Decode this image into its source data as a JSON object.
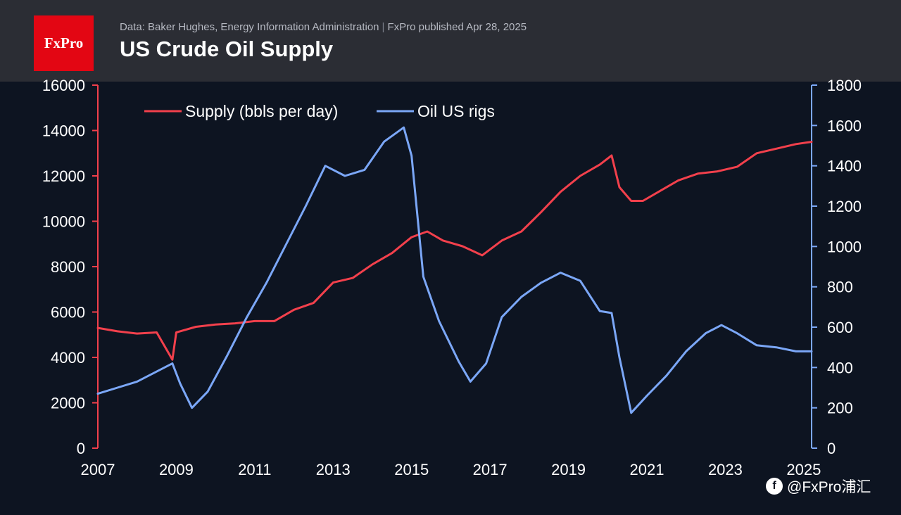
{
  "header": {
    "logo_text": "FxPro",
    "source_text": "Data: Baker Hughes, Energy Information Administration",
    "separator": "|",
    "published_text": "FxPro published Apr 28, 2025",
    "title": "US Crude Oil Supply"
  },
  "watermark": {
    "icon": "brand-logo-icon",
    "text": "@FxPro浦汇"
  },
  "colors": {
    "background": "#0d1421",
    "header": "#2b2d34",
    "brand": "#e30613",
    "supply": "#f2404c",
    "rigs": "#7ba7f7",
    "text": "#ffffff"
  },
  "chart_data": {
    "type": "line",
    "title": "US Crude Oil Supply",
    "x_ticks": [
      "2007",
      "2009",
      "2011",
      "2013",
      "2015",
      "2017",
      "2019",
      "2021",
      "2023",
      "2025"
    ],
    "xlim": [
      2007,
      2025.2
    ],
    "left_axis": {
      "label": "Supply (bbls per day)",
      "ylim": [
        0,
        16000
      ],
      "ticks": [
        "0",
        "2000",
        "4000",
        "6000",
        "8000",
        "10000",
        "12000",
        "14000",
        "16000"
      ]
    },
    "right_axis": {
      "label": "Oil US rigs",
      "ylim": [
        0,
        1800
      ],
      "ticks": [
        "0",
        "200",
        "400",
        "600",
        "800",
        "1000",
        "1200",
        "1400",
        "1600",
        "1800"
      ]
    },
    "legend": {
      "placement": "top-left"
    },
    "series": [
      {
        "name": "Supply (bbls per day)",
        "axis": "left",
        "x": [
          2007.0,
          2007.5,
          2008.0,
          2008.5,
          2008.9,
          2009.0,
          2009.5,
          2010.0,
          2010.5,
          2011.0,
          2011.5,
          2012.0,
          2012.5,
          2013.0,
          2013.5,
          2014.0,
          2014.5,
          2015.0,
          2015.4,
          2015.8,
          2016.3,
          2016.8,
          2017.3,
          2017.8,
          2018.3,
          2018.8,
          2019.3,
          2019.8,
          2020.1,
          2020.3,
          2020.6,
          2020.9,
          2021.3,
          2021.8,
          2022.3,
          2022.8,
          2023.3,
          2023.8,
          2024.3,
          2024.8,
          2025.2
        ],
        "values": [
          5300,
          5150,
          5050,
          5100,
          3900,
          5100,
          5350,
          5450,
          5500,
          5600,
          5600,
          6100,
          6400,
          7300,
          7500,
          8100,
          8600,
          9300,
          9550,
          9150,
          8900,
          8500,
          9150,
          9550,
          10400,
          11300,
          12000,
          12500,
          12900,
          11500,
          10900,
          10900,
          11300,
          11800,
          12100,
          12200,
          12400,
          13000,
          13200,
          13400,
          13500
        ]
      },
      {
        "name": "Oil US rigs",
        "axis": "right",
        "x": [
          2007.0,
          2007.5,
          2008.0,
          2008.5,
          2008.9,
          2009.1,
          2009.4,
          2009.8,
          2010.3,
          2010.8,
          2011.3,
          2011.8,
          2012.3,
          2012.8,
          2013.3,
          2013.8,
          2014.3,
          2014.8,
          2015.0,
          2015.3,
          2015.7,
          2016.2,
          2016.5,
          2016.9,
          2017.3,
          2017.8,
          2018.3,
          2018.8,
          2019.3,
          2019.8,
          2020.1,
          2020.3,
          2020.6,
          2021.0,
          2021.5,
          2022.0,
          2022.5,
          2022.9,
          2023.3,
          2023.8,
          2024.3,
          2024.8,
          2025.2
        ],
        "values": [
          270,
          300,
          330,
          380,
          420,
          320,
          200,
          280,
          460,
          650,
          820,
          1010,
          1200,
          1400,
          1350,
          1380,
          1520,
          1590,
          1450,
          850,
          630,
          430,
          330,
          420,
          650,
          750,
          820,
          870,
          830,
          680,
          670,
          450,
          175,
          260,
          360,
          480,
          570,
          610,
          570,
          510,
          500,
          480,
          480
        ]
      }
    ]
  }
}
